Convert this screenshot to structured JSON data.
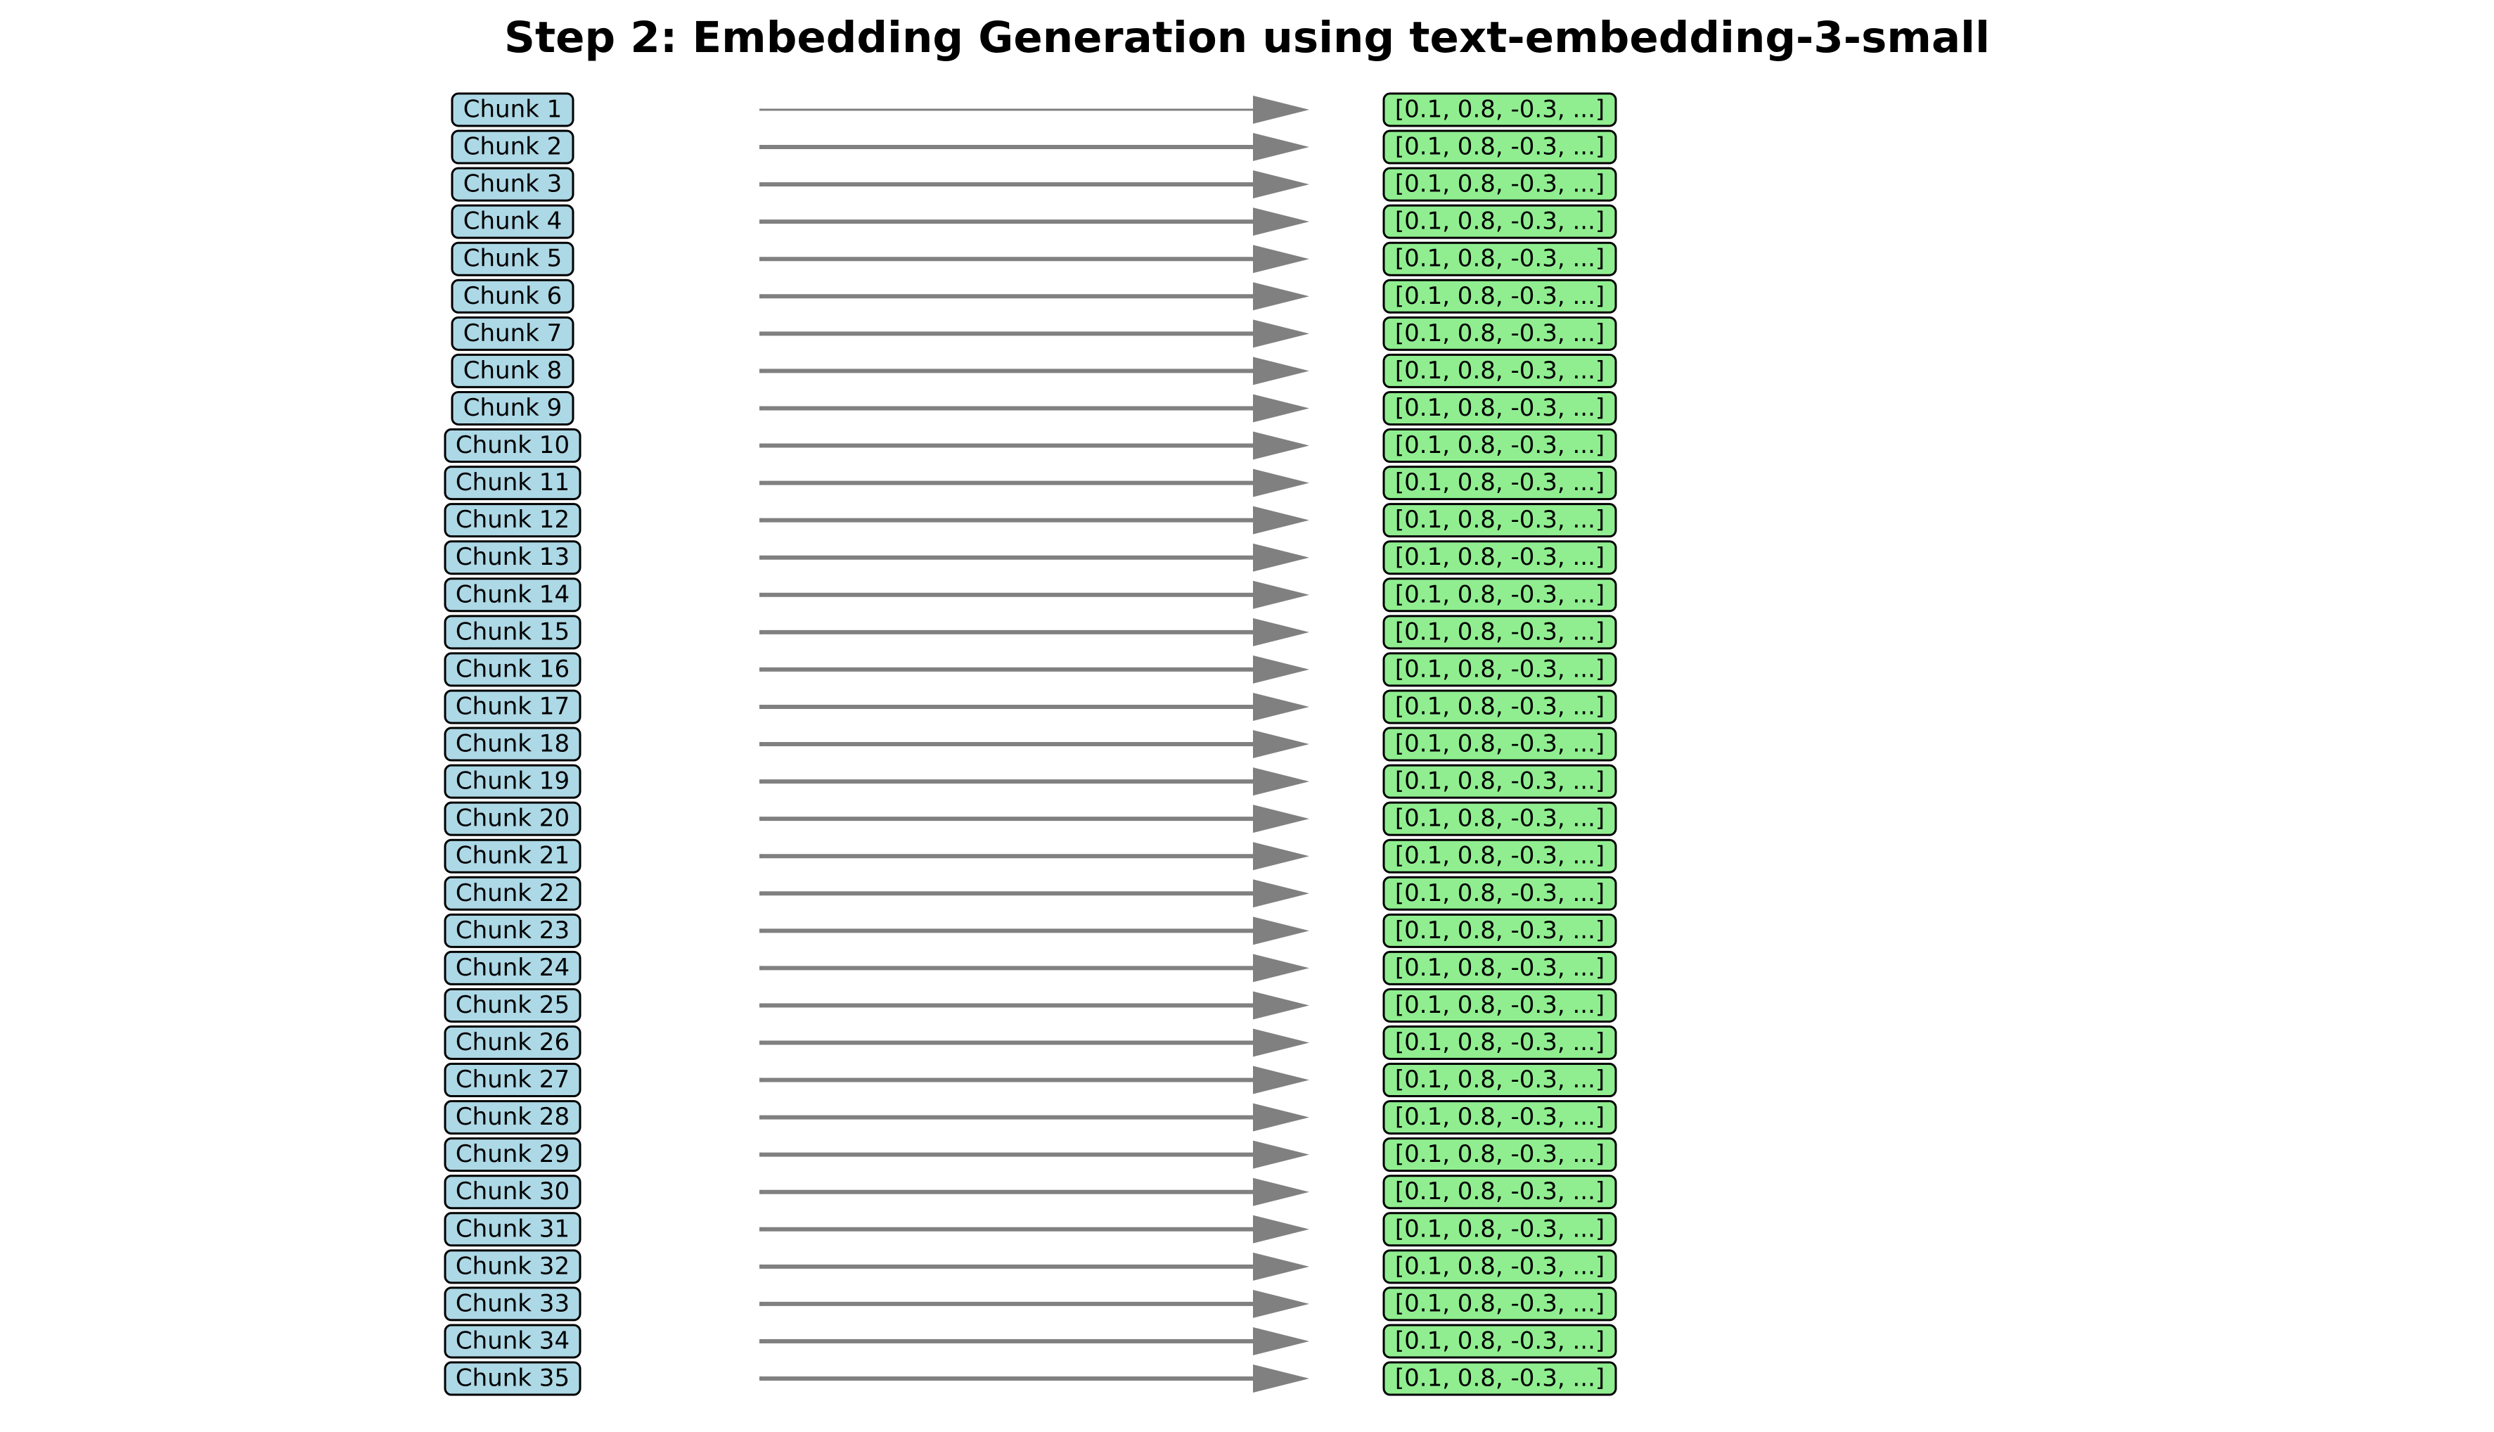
{
  "title": "Step 2: Embedding Generation using text-embedding-3-small",
  "colors": {
    "chunk_fill": "#add8e6",
    "embedding_fill": "#90ee90",
    "arrow": "#808080",
    "box_stroke": "#000000"
  },
  "rows": [
    {
      "chunk": "Chunk 1",
      "embedding": "[0.1, 0.8, -0.3, ...]"
    },
    {
      "chunk": "Chunk 2",
      "embedding": "[0.1, 0.8, -0.3, ...]"
    },
    {
      "chunk": "Chunk 3",
      "embedding": "[0.1, 0.8, -0.3, ...]"
    },
    {
      "chunk": "Chunk 4",
      "embedding": "[0.1, 0.8, -0.3, ...]"
    },
    {
      "chunk": "Chunk 5",
      "embedding": "[0.1, 0.8, -0.3, ...]"
    },
    {
      "chunk": "Chunk 6",
      "embedding": "[0.1, 0.8, -0.3, ...]"
    },
    {
      "chunk": "Chunk 7",
      "embedding": "[0.1, 0.8, -0.3, ...]"
    },
    {
      "chunk": "Chunk 8",
      "embedding": "[0.1, 0.8, -0.3, ...]"
    },
    {
      "chunk": "Chunk 9",
      "embedding": "[0.1, 0.8, -0.3, ...]"
    },
    {
      "chunk": "Chunk 10",
      "embedding": "[0.1, 0.8, -0.3, ...]"
    },
    {
      "chunk": "Chunk 11",
      "embedding": "[0.1, 0.8, -0.3, ...]"
    },
    {
      "chunk": "Chunk 12",
      "embedding": "[0.1, 0.8, -0.3, ...]"
    },
    {
      "chunk": "Chunk 13",
      "embedding": "[0.1, 0.8, -0.3, ...]"
    },
    {
      "chunk": "Chunk 14",
      "embedding": "[0.1, 0.8, -0.3, ...]"
    },
    {
      "chunk": "Chunk 15",
      "embedding": "[0.1, 0.8, -0.3, ...]"
    },
    {
      "chunk": "Chunk 16",
      "embedding": "[0.1, 0.8, -0.3, ...]"
    },
    {
      "chunk": "Chunk 17",
      "embedding": "[0.1, 0.8, -0.3, ...]"
    },
    {
      "chunk": "Chunk 18",
      "embedding": "[0.1, 0.8, -0.3, ...]"
    },
    {
      "chunk": "Chunk 19",
      "embedding": "[0.1, 0.8, -0.3, ...]"
    },
    {
      "chunk": "Chunk 20",
      "embedding": "[0.1, 0.8, -0.3, ...]"
    },
    {
      "chunk": "Chunk 21",
      "embedding": "[0.1, 0.8, -0.3, ...]"
    },
    {
      "chunk": "Chunk 22",
      "embedding": "[0.1, 0.8, -0.3, ...]"
    },
    {
      "chunk": "Chunk 23",
      "embedding": "[0.1, 0.8, -0.3, ...]"
    },
    {
      "chunk": "Chunk 24",
      "embedding": "[0.1, 0.8, -0.3, ...]"
    },
    {
      "chunk": "Chunk 25",
      "embedding": "[0.1, 0.8, -0.3, ...]"
    },
    {
      "chunk": "Chunk 26",
      "embedding": "[0.1, 0.8, -0.3, ...]"
    },
    {
      "chunk": "Chunk 27",
      "embedding": "[0.1, 0.8, -0.3, ...]"
    },
    {
      "chunk": "Chunk 28",
      "embedding": "[0.1, 0.8, -0.3, ...]"
    },
    {
      "chunk": "Chunk 29",
      "embedding": "[0.1, 0.8, -0.3, ...]"
    },
    {
      "chunk": "Chunk 30",
      "embedding": "[0.1, 0.8, -0.3, ...]"
    },
    {
      "chunk": "Chunk 31",
      "embedding": "[0.1, 0.8, -0.3, ...]"
    },
    {
      "chunk": "Chunk 32",
      "embedding": "[0.1, 0.8, -0.3, ...]"
    },
    {
      "chunk": "Chunk 33",
      "embedding": "[0.1, 0.8, -0.3, ...]"
    },
    {
      "chunk": "Chunk 34",
      "embedding": "[0.1, 0.8, -0.3, ...]"
    },
    {
      "chunk": "Chunk 35",
      "embedding": "[0.1, 0.8, -0.3, ...]"
    }
  ]
}
